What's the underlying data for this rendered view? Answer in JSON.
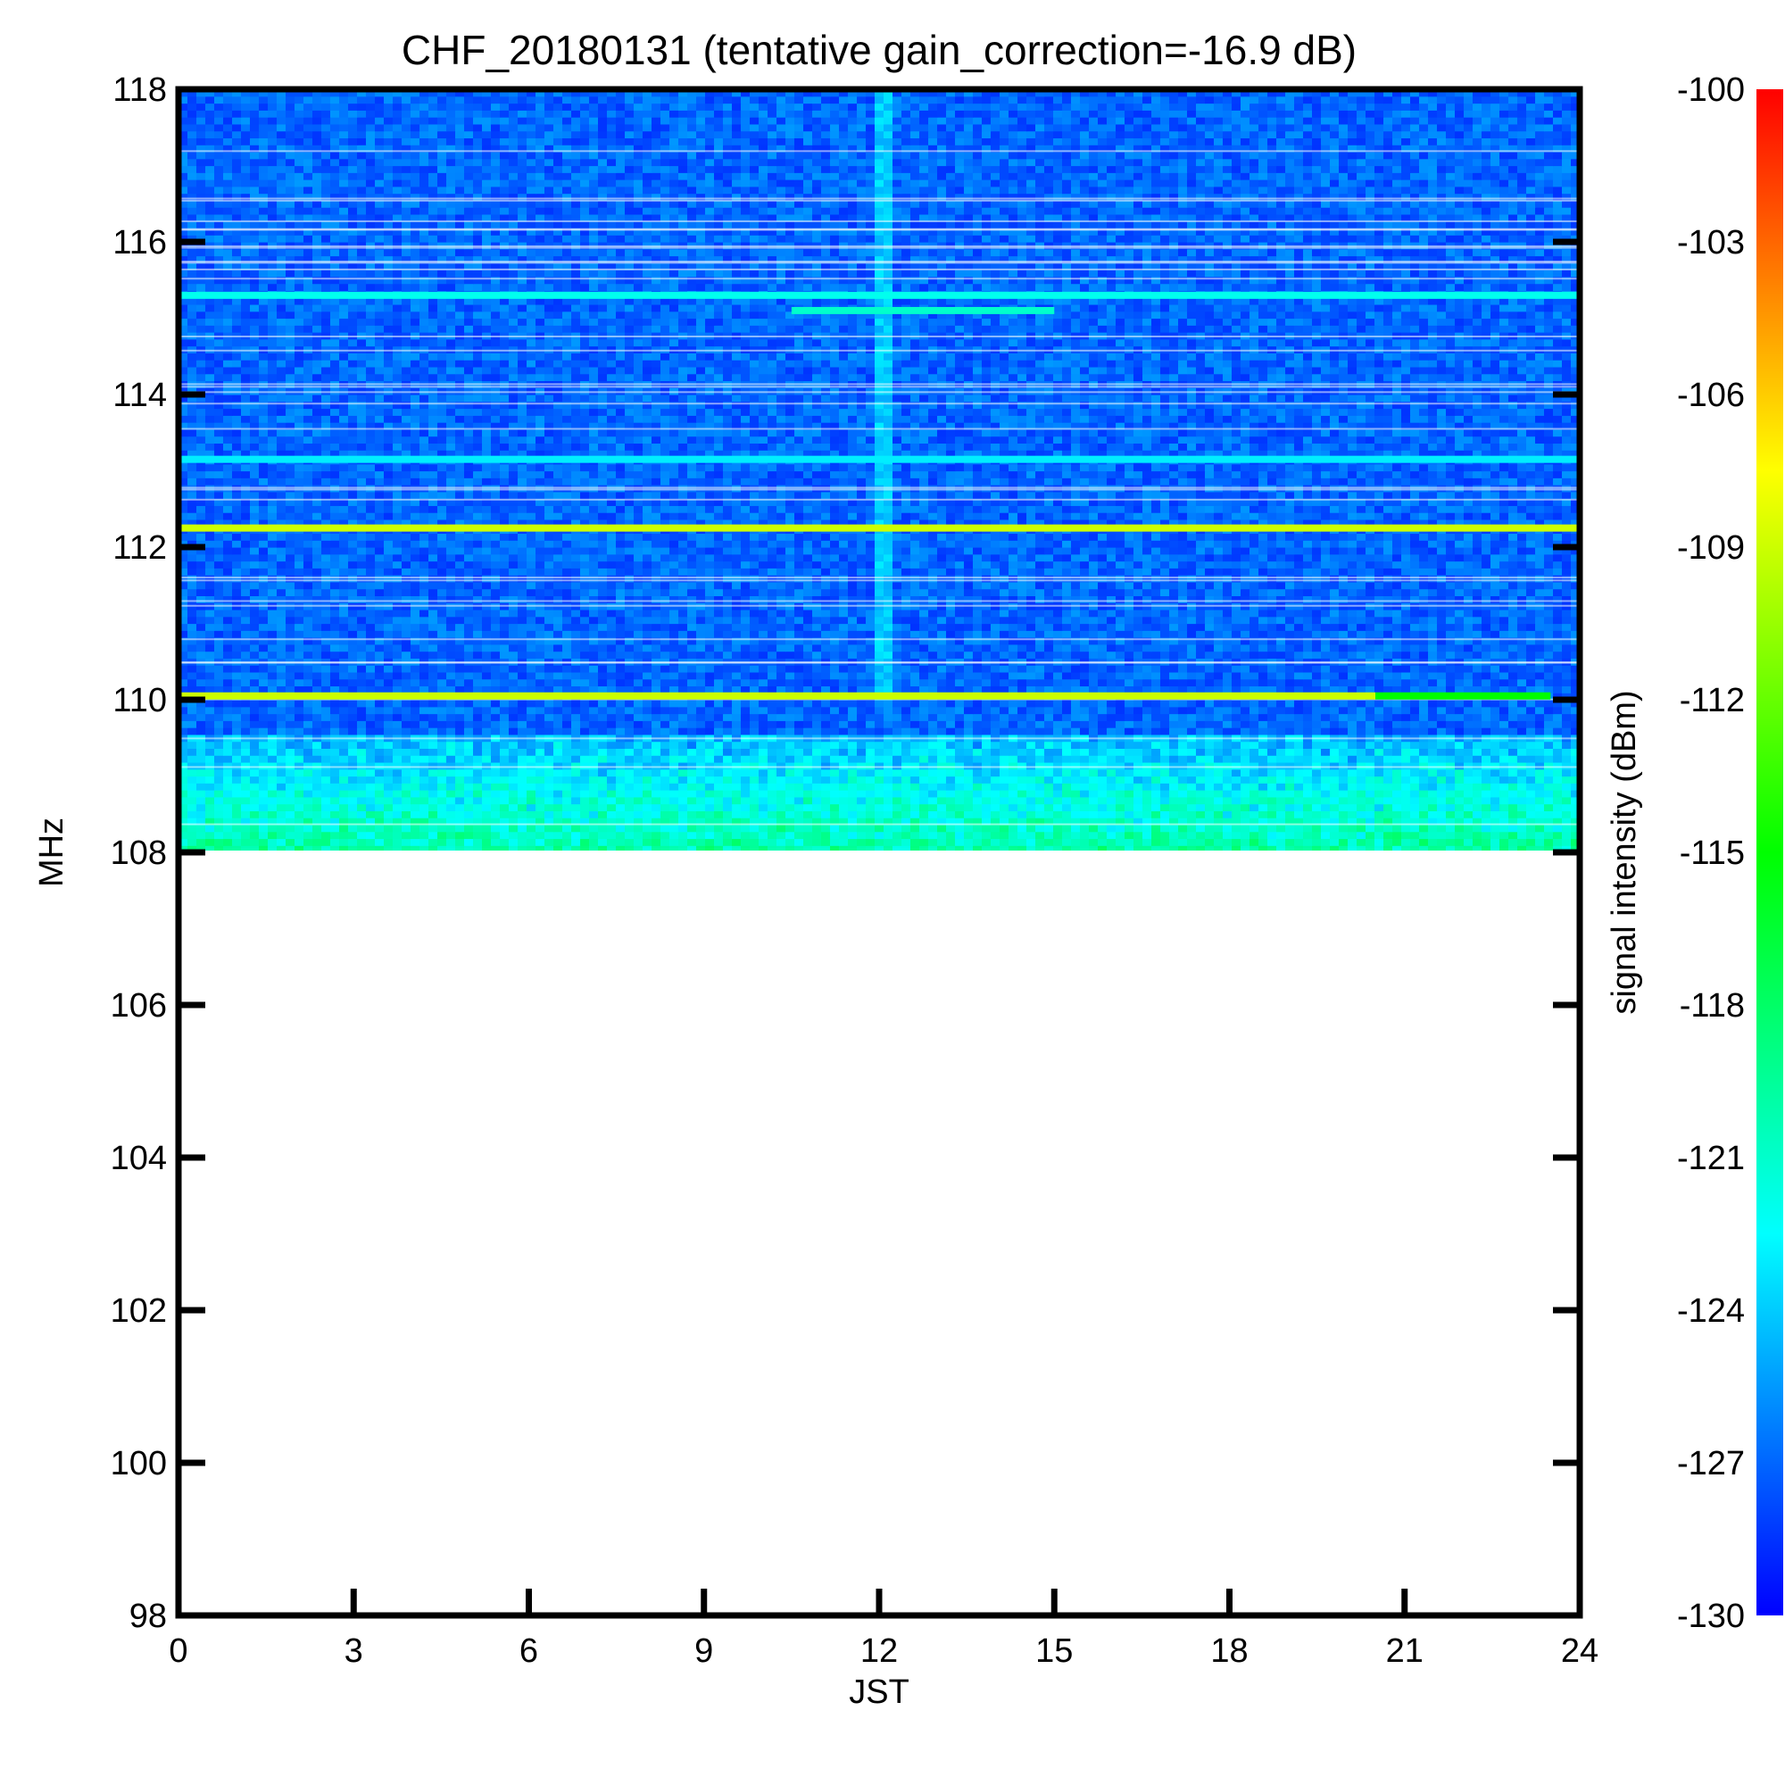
{
  "chart_data": {
    "type": "heatmap",
    "title": "CHF_20180131 (tentative gain_correction=-16.9 dB)",
    "xlabel": "JST",
    "ylabel": "MHz",
    "xlim": [
      0,
      24
    ],
    "ylim": [
      98,
      118
    ],
    "x_ticks": [
      0,
      3,
      6,
      9,
      12,
      15,
      18,
      21,
      24
    ],
    "y_ticks": [
      98,
      100,
      102,
      104,
      106,
      108,
      110,
      112,
      114,
      116,
      118
    ],
    "data_frequency_range_mhz": [
      108,
      118
    ],
    "colorbar": {
      "label": "signal intensity (dBm)",
      "range": [
        -130,
        -100
      ],
      "ticks": [
        -100,
        -103,
        -106,
        -109,
        -112,
        -115,
        -118,
        -121,
        -124,
        -127,
        -130
      ],
      "colormap": [
        "#0000ff",
        "#00ffff",
        "#00ff00",
        "#ffff00",
        "#ff0000"
      ]
    },
    "background_level_dbm": -127,
    "features": [
      {
        "type": "band",
        "freq_mhz": 112.25,
        "time_range": [
          0,
          24
        ],
        "level_dbm": -109
      },
      {
        "type": "band",
        "freq_mhz": 110.05,
        "time_range": [
          0,
          20.5
        ],
        "level_dbm": -109
      },
      {
        "type": "band",
        "freq_mhz": 110.05,
        "time_range": [
          20.5,
          23.5
        ],
        "level_dbm": -115
      },
      {
        "type": "band",
        "freq_mhz": 115.3,
        "time_range": [
          0,
          24
        ],
        "level_dbm": -122
      },
      {
        "type": "band",
        "freq_mhz": 113.15,
        "time_range": [
          0,
          24
        ],
        "level_dbm": -123
      },
      {
        "type": "band",
        "freq_mhz": 115.1,
        "time_range": [
          10.5,
          15
        ],
        "level_dbm": -121
      },
      {
        "type": "region",
        "freq_range_mhz": [
          108,
          109.5
        ],
        "time_range": [
          0,
          24
        ],
        "level_dbm": -120
      },
      {
        "type": "burst",
        "time_jst": 12.1,
        "freq_range_mhz": [
          110,
          118
        ],
        "level_dbm": -124
      }
    ]
  }
}
